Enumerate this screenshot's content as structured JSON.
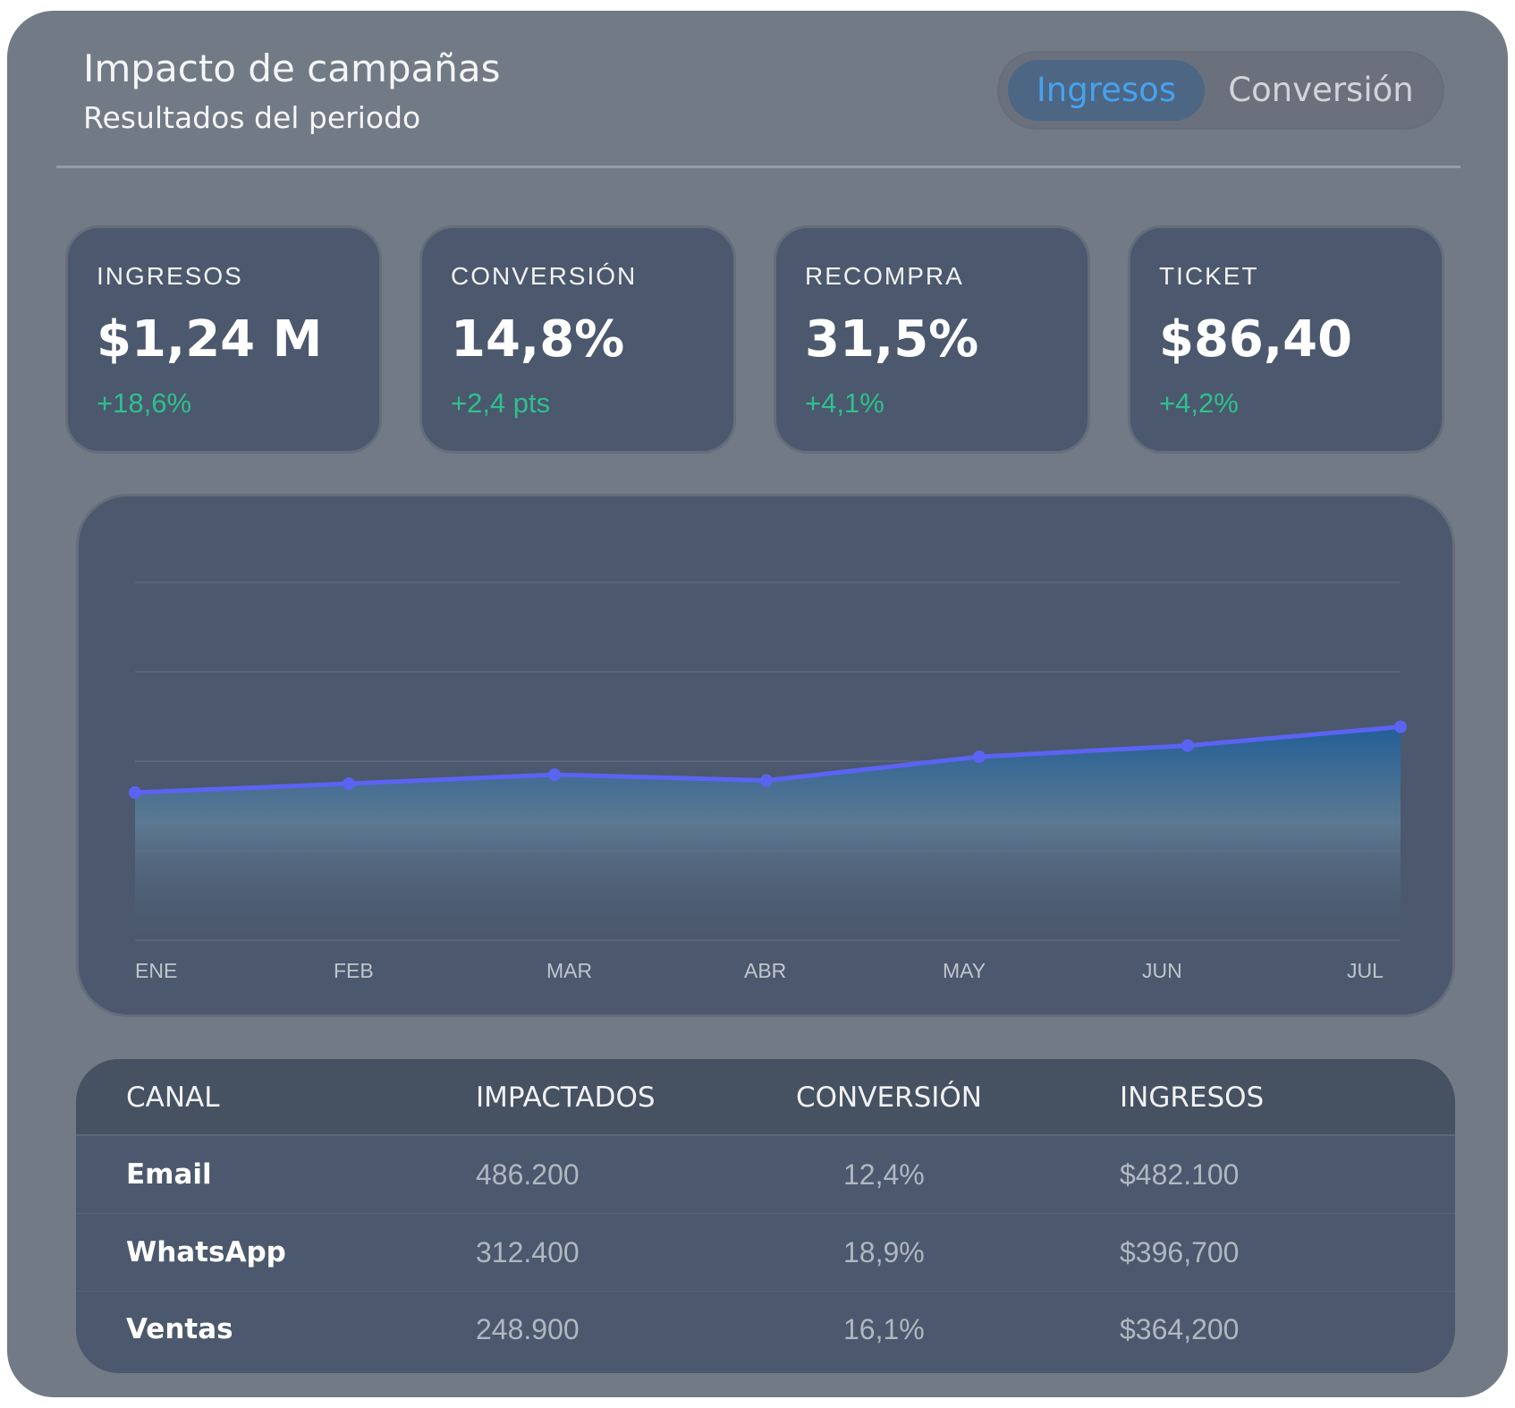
{
  "header": {
    "title": "Impacto de campañas",
    "subtitle": "Resultados del periodo"
  },
  "toggle": {
    "options": [
      "Ingresos",
      "Conversión"
    ],
    "selected": "Ingresos"
  },
  "kpis": [
    {
      "label": "INGRESOS",
      "value": "$1,24 M",
      "delta": "+18,6%"
    },
    {
      "label": "CONVERSIÓN",
      "value": "14,8%",
      "delta": "+2,4 pts"
    },
    {
      "label": "RECOMPRA",
      "value": "31,5%",
      "delta": "+4,1%"
    },
    {
      "label": "TICKET",
      "value": "$86,40",
      "delta": "+4,2%"
    }
  ],
  "chart_data": {
    "type": "area",
    "categories": [
      "ENE",
      "FEB",
      "MAR",
      "ABR",
      "MAY",
      "JUN",
      "JUL"
    ],
    "values": [
      33,
      35,
      37,
      35.7,
      41,
      43.5,
      47.7
    ],
    "ylim": [
      0,
      80
    ],
    "grid": true,
    "line_color": "#5b63f2",
    "fill_top_color": "#1f5f9a"
  },
  "table": {
    "columns": [
      "CANAL",
      "IMPACTADOS",
      "CONVERSIÓN",
      "INGRESOS"
    ],
    "rows": [
      [
        "Email",
        "486.200",
        "12,4%",
        "$482.100"
      ],
      [
        "WhatsApp",
        "312.400",
        "18,9%",
        "$396,700"
      ],
      [
        "Ventas",
        "248.900",
        "16,1%",
        "$364,200"
      ]
    ]
  },
  "colors": {
    "accent": "#46a2ef",
    "positive": "#2fc08f",
    "panel": "#727a86",
    "card": "#4b586d"
  }
}
